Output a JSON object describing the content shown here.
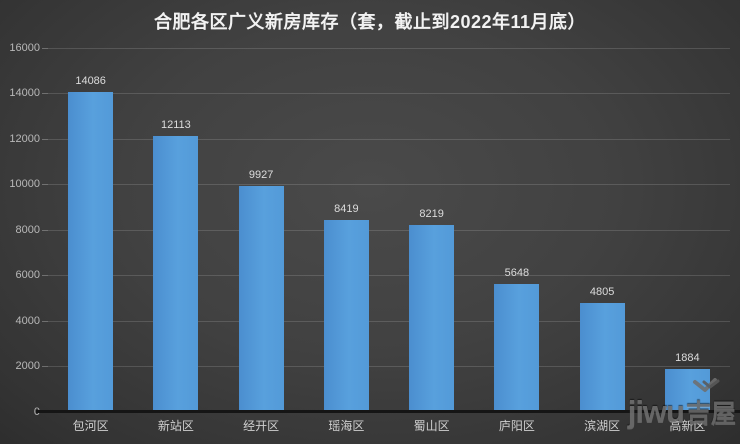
{
  "title": "合肥各区广义新房库存（套，截止到2022年11月底）",
  "watermark": {
    "brand_latin": "jiwu",
    "brand_cjk": "吉屋"
  },
  "colors": {
    "bar": "#539ad8",
    "background_center": "#4a4a4a",
    "background_edge": "#262626",
    "gridline": "rgba(255,255,255,0.14)",
    "title_text": "#f2f2f2",
    "axis_label_text": "#b8b8b8",
    "value_label_text": "#dcdcdc",
    "category_label_text": "#cfcfcf",
    "watermark_text": "#6f6f6f"
  },
  "chart_data": {
    "type": "bar",
    "title": "合肥各区广义新房库存（套，截止到2022年11月底）",
    "categories": [
      "包河区",
      "新站区",
      "经开区",
      "瑶海区",
      "蜀山区",
      "庐阳区",
      "滨湖区",
      "高新区"
    ],
    "values": [
      14086,
      12113,
      9927,
      8419,
      8219,
      5648,
      4805,
      1884
    ],
    "value_labels": [
      "14086",
      "12113",
      "9927",
      "8419",
      "8219",
      "5648",
      "4805",
      "1884"
    ],
    "xlabel": "",
    "ylabel": "",
    "ylim": [
      0,
      16000
    ],
    "ytick_interval": 2000,
    "ytick_labels": [
      "0",
      "2000",
      "4000",
      "6000",
      "8000",
      "10000",
      "12000",
      "14000",
      "16000"
    ],
    "grid": true,
    "legend": "none",
    "orientation": "vertical"
  }
}
